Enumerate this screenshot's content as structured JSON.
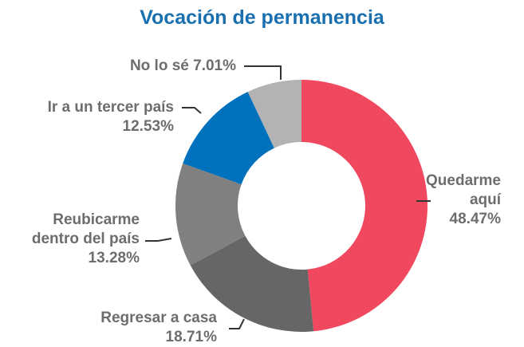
{
  "chart_data": {
    "type": "donut",
    "title": "Vocación de permanencia",
    "categories": [
      "Quedarme aquí",
      "Regresar a casa",
      "Reubicarme dentro del país",
      "Ir a un tercer país",
      "No lo sé"
    ],
    "values": [
      48.47,
      18.71,
      13.28,
      12.53,
      7.01
    ],
    "value_labels": [
      "48.47%",
      "18.71%",
      "13.28%",
      "12.53%",
      "7.01%"
    ],
    "colors": [
      "#f0485f",
      "#666666",
      "#808080",
      "#0071bc",
      "#b3b3b3"
    ]
  }
}
